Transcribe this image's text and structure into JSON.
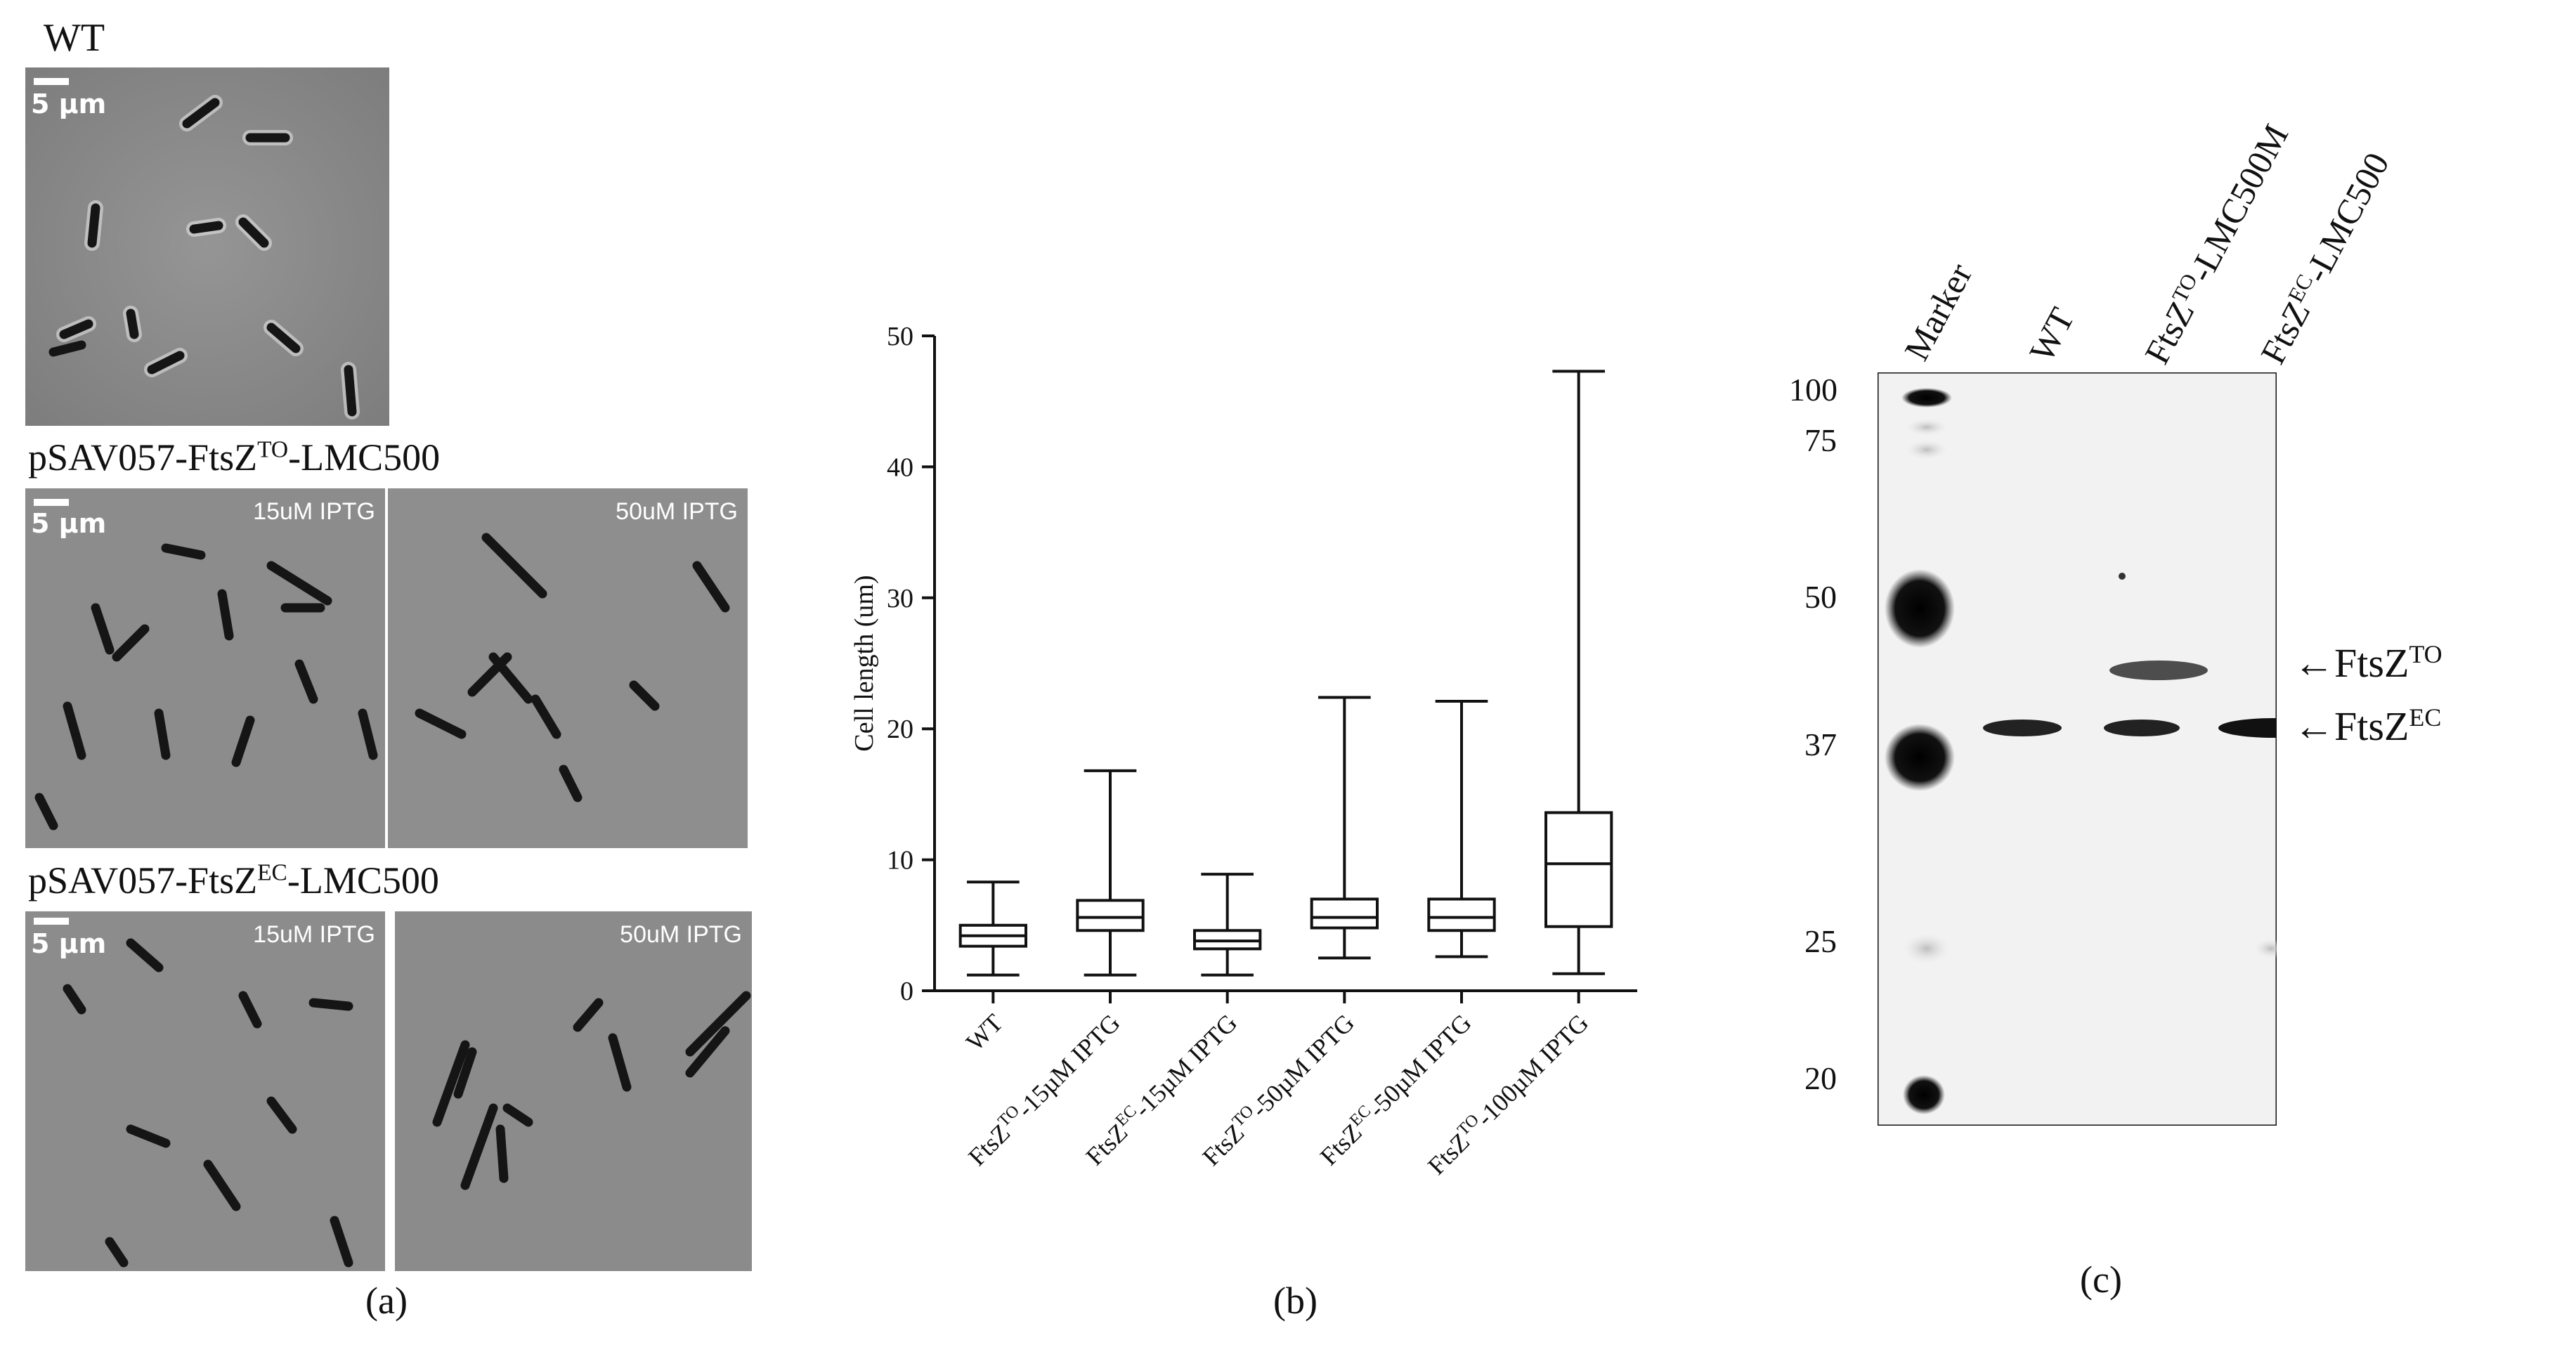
{
  "panel_a": {
    "label": "(a)",
    "rows": [
      {
        "title_pre": "WT",
        "title_sup": "",
        "title_post": "",
        "panels": [
          {
            "scale_label": "5 µm",
            "condition": ""
          }
        ]
      },
      {
        "title_pre": "pSAV057-FtsZ",
        "title_sup": "TO",
        "title_post": "-LMC500",
        "panels": [
          {
            "scale_label": "5 µm",
            "condition": "15uM IPTG"
          },
          {
            "scale_label": "",
            "condition": "50uM IPTG"
          }
        ]
      },
      {
        "title_pre": "pSAV057-FtsZ",
        "title_sup": "EC",
        "title_post": "-LMC500",
        "panels": [
          {
            "scale_label": "5 µm",
            "condition": "15uM IPTG"
          },
          {
            "scale_label": "",
            "condition": "50uM IPTG"
          }
        ]
      }
    ]
  },
  "panel_b": {
    "label": "(b)",
    "chart_data": {
      "type": "boxplot",
      "ylabel": "Cell length  (um)",
      "ylim": [
        0,
        50
      ],
      "yticks": [
        0,
        10,
        20,
        30,
        40,
        50
      ],
      "categories": [
        {
          "pre": "WT",
          "sup": "",
          "post": ""
        },
        {
          "pre": "FtsZ",
          "sup": "TO",
          "post": "-15µM IPTG"
        },
        {
          "pre": "FtsZ",
          "sup": "EC",
          "post": "-15µM IPTG"
        },
        {
          "pre": "FtsZ",
          "sup": "TO",
          "post": "-50µM IPTG"
        },
        {
          "pre": "FtsZ",
          "sup": "EC",
          "post": "-50µM IPTG"
        },
        {
          "pre": "FtsZ",
          "sup": "TO",
          "post": "-100µM IPTG"
        }
      ],
      "boxes": [
        {
          "min": 1.2,
          "q1": 3.4,
          "median": 4.2,
          "q3": 5.0,
          "max": 8.3
        },
        {
          "min": 1.2,
          "q1": 4.6,
          "median": 5.6,
          "q3": 6.9,
          "max": 16.8
        },
        {
          "min": 1.2,
          "q1": 3.2,
          "median": 3.8,
          "q3": 4.6,
          "max": 8.9
        },
        {
          "min": 2.5,
          "q1": 4.8,
          "median": 5.6,
          "q3": 7.0,
          "max": 22.4
        },
        {
          "min": 2.6,
          "q1": 4.6,
          "median": 5.6,
          "q3": 7.0,
          "max": 22.1
        },
        {
          "min": 1.3,
          "q1": 4.9,
          "median": 9.7,
          "q3": 13.6,
          "max": 47.3
        }
      ]
    }
  },
  "panel_c": {
    "label": "(c)",
    "lanes": [
      {
        "pre": "Marker",
        "sup": "",
        "post": ""
      },
      {
        "pre": "WT",
        "sup": "",
        "post": ""
      },
      {
        "pre": "FtsZ",
        "sup": "TO",
        "post": "-LMC500M"
      },
      {
        "pre": "FtsZ",
        "sup": "EC",
        "post": "-LMC500"
      }
    ],
    "mw_markers": [
      "100",
      "75",
      "50",
      "37",
      "25",
      "20"
    ],
    "band_labels": [
      {
        "arrow": "←",
        "pre": "FtsZ",
        "sup": "TO"
      },
      {
        "arrow": "←",
        "pre": "FtsZ",
        "sup": "EC"
      }
    ]
  }
}
